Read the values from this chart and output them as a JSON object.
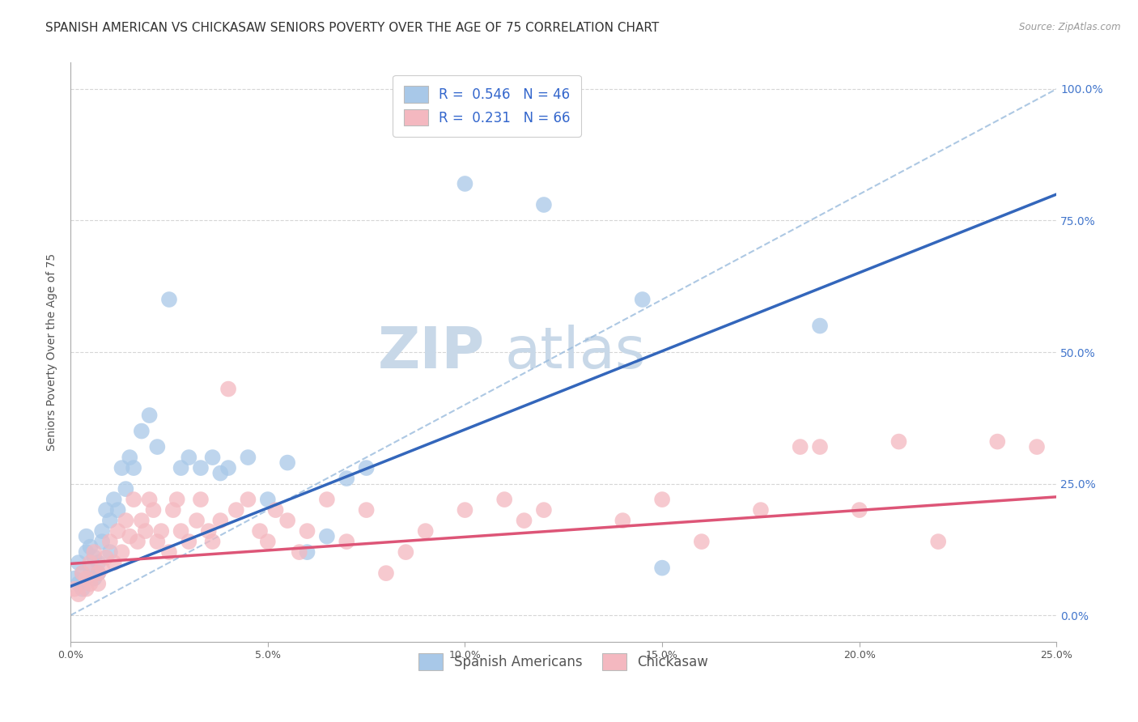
{
  "title": "SPANISH AMERICAN VS CHICKASAW SENIORS POVERTY OVER THE AGE OF 75 CORRELATION CHART",
  "source": "Source: ZipAtlas.com",
  "ylabel": "Seniors Poverty Over the Age of 75",
  "x_min": 0.0,
  "x_max": 0.25,
  "y_min": -0.05,
  "y_max": 1.05,
  "x_tick_labels": [
    "0.0%",
    "5.0%",
    "10.0%",
    "15.0%",
    "20.0%",
    "25.0%"
  ],
  "x_tick_vals": [
    0.0,
    0.05,
    0.1,
    0.15,
    0.2,
    0.25
  ],
  "y_tick_labels_right": [
    "100.0%",
    "75.0%",
    "50.0%",
    "25.0%",
    "0.0%"
  ],
  "y_tick_vals_right": [
    1.0,
    0.75,
    0.5,
    0.25,
    0.0
  ],
  "blue_color": "#a8c8e8",
  "pink_color": "#f4b8c0",
  "blue_line_color": "#3366bb",
  "pink_line_color": "#dd5577",
  "dashed_line_color": "#99bbdd",
  "legend_blue_r": "0.546",
  "legend_blue_n": "46",
  "legend_pink_r": "0.231",
  "legend_pink_n": "66",
  "watermark_zip": "ZIP",
  "watermark_atlas": "atlas",
  "blue_scatter_x": [
    0.001,
    0.002,
    0.002,
    0.003,
    0.003,
    0.004,
    0.004,
    0.005,
    0.005,
    0.006,
    0.006,
    0.007,
    0.007,
    0.008,
    0.008,
    0.009,
    0.01,
    0.01,
    0.011,
    0.012,
    0.013,
    0.014,
    0.015,
    0.016,
    0.018,
    0.02,
    0.022,
    0.025,
    0.028,
    0.03,
    0.033,
    0.036,
    0.038,
    0.04,
    0.045,
    0.05,
    0.055,
    0.06,
    0.065,
    0.07,
    0.075,
    0.1,
    0.12,
    0.145,
    0.15,
    0.19
  ],
  "blue_scatter_y": [
    0.07,
    0.06,
    0.1,
    0.05,
    0.08,
    0.12,
    0.15,
    0.09,
    0.13,
    0.07,
    0.11,
    0.08,
    0.1,
    0.14,
    0.16,
    0.2,
    0.18,
    0.12,
    0.22,
    0.2,
    0.28,
    0.24,
    0.3,
    0.28,
    0.35,
    0.38,
    0.32,
    0.6,
    0.28,
    0.3,
    0.28,
    0.3,
    0.27,
    0.28,
    0.3,
    0.22,
    0.29,
    0.12,
    0.15,
    0.26,
    0.28,
    0.82,
    0.78,
    0.6,
    0.09,
    0.55
  ],
  "pink_scatter_x": [
    0.001,
    0.002,
    0.003,
    0.004,
    0.004,
    0.005,
    0.005,
    0.006,
    0.007,
    0.007,
    0.008,
    0.009,
    0.01,
    0.011,
    0.012,
    0.013,
    0.014,
    0.015,
    0.016,
    0.017,
    0.018,
    0.019,
    0.02,
    0.021,
    0.022,
    0.023,
    0.025,
    0.026,
    0.027,
    0.028,
    0.03,
    0.032,
    0.033,
    0.035,
    0.036,
    0.038,
    0.04,
    0.042,
    0.045,
    0.048,
    0.05,
    0.052,
    0.055,
    0.058,
    0.06,
    0.065,
    0.07,
    0.075,
    0.08,
    0.085,
    0.09,
    0.1,
    0.11,
    0.115,
    0.12,
    0.14,
    0.15,
    0.16,
    0.175,
    0.185,
    0.19,
    0.2,
    0.21,
    0.22,
    0.235,
    0.245
  ],
  "pink_scatter_y": [
    0.05,
    0.04,
    0.08,
    0.05,
    0.07,
    0.1,
    0.06,
    0.12,
    0.08,
    0.06,
    0.09,
    0.11,
    0.14,
    0.1,
    0.16,
    0.12,
    0.18,
    0.15,
    0.22,
    0.14,
    0.18,
    0.16,
    0.22,
    0.2,
    0.14,
    0.16,
    0.12,
    0.2,
    0.22,
    0.16,
    0.14,
    0.18,
    0.22,
    0.16,
    0.14,
    0.18,
    0.43,
    0.2,
    0.22,
    0.16,
    0.14,
    0.2,
    0.18,
    0.12,
    0.16,
    0.22,
    0.14,
    0.2,
    0.08,
    0.12,
    0.16,
    0.2,
    0.22,
    0.18,
    0.2,
    0.18,
    0.22,
    0.14,
    0.2,
    0.32,
    0.32,
    0.2,
    0.33,
    0.14,
    0.33,
    0.32
  ],
  "blue_trendline_x": [
    0.0,
    0.25
  ],
  "blue_trendline_y": [
    0.055,
    0.8
  ],
  "pink_trendline_x": [
    0.0,
    0.25
  ],
  "pink_trendline_y": [
    0.098,
    0.225
  ],
  "diag_line_x": [
    0.0,
    0.25
  ],
  "diag_line_y": [
    0.0,
    1.0
  ],
  "background_color": "#ffffff",
  "grid_color": "#cccccc",
  "title_fontsize": 11,
  "axis_label_fontsize": 10,
  "tick_fontsize": 9,
  "watermark_fontsize_zip": 52,
  "watermark_fontsize_atlas": 52,
  "watermark_color": "#c8d8e8",
  "legend_fontsize": 12
}
